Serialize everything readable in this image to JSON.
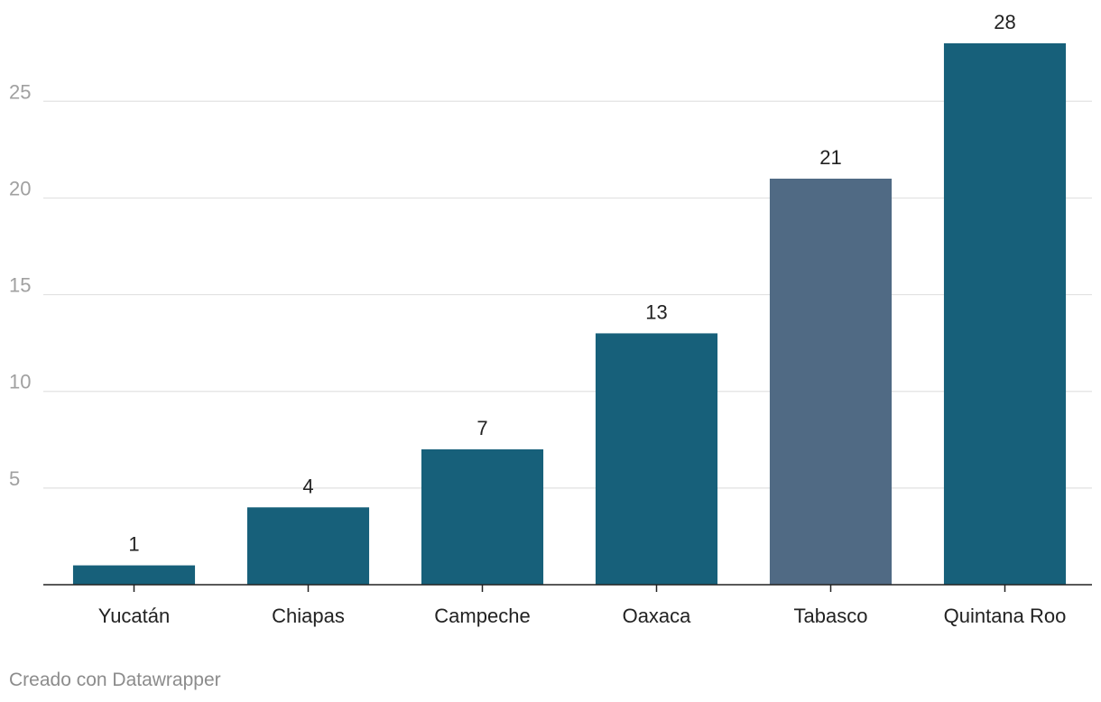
{
  "chart_data": {
    "type": "bar",
    "categories": [
      "Yucatán",
      "Chiapas",
      "Campeche",
      "Oaxaca",
      "Tabasco",
      "Quintana Roo"
    ],
    "values": [
      1,
      4,
      7,
      13,
      21,
      28
    ],
    "value_labels": [
      "1",
      "4",
      "7",
      "13",
      "21",
      "28"
    ],
    "bar_colors": [
      "#17607a",
      "#17607a",
      "#17607a",
      "#17607a",
      "#506a84",
      "#17607a"
    ],
    "title": "",
    "xlabel": "",
    "ylabel": "",
    "ylim": [
      0,
      28
    ],
    "yticks": [
      5,
      10,
      15,
      20,
      25
    ],
    "ytick_labels": [
      "5",
      "10",
      "15",
      "20",
      "25"
    ],
    "grid": true,
    "legend": "none"
  },
  "footer": {
    "credit": "Creado con Datawrapper"
  }
}
